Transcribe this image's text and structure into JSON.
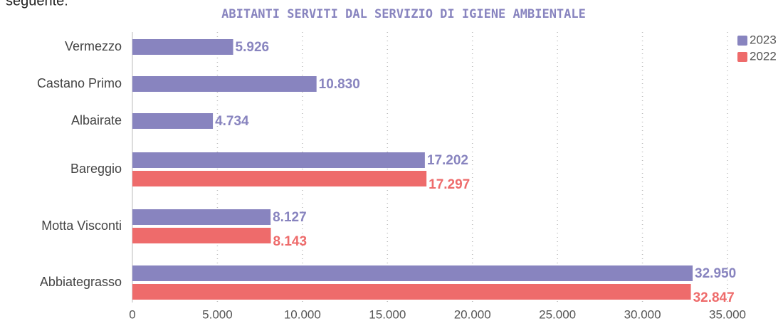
{
  "intro_text": "seguente:",
  "chart_data": {
    "type": "hbar",
    "title": "ABITANTI SERVITI DAL SERVIZIO DI IGIENE AMBIENTALE",
    "categories": [
      "Vermezzo",
      "Castano Primo",
      "Albairate",
      "Bareggio",
      "Motta Visconti",
      "Abbiategrasso"
    ],
    "series": [
      {
        "name": "2023",
        "color": "#8884bf",
        "values": [
          5926,
          10830,
          4734,
          17202,
          8127,
          32950
        ],
        "value_labels": [
          "5.926",
          "10.830",
          "4.734",
          "17.202",
          "8.127",
          "32.950"
        ]
      },
      {
        "name": "2022",
        "color": "#ee6b6b",
        "values": [
          null,
          null,
          null,
          17297,
          8143,
          32847
        ],
        "value_labels": [
          null,
          null,
          null,
          "17.297",
          "8.143",
          "32.847"
        ]
      }
    ],
    "xlim": [
      0,
      35000
    ],
    "xticks": [
      0,
      {
        "value": 5000,
        "label": "5.000"
      },
      {
        "value": 10000,
        "label": "10.000"
      },
      {
        "value": 15000,
        "label": "15.000"
      },
      {
        "value": 20000,
        "label": "20.000"
      },
      {
        "value": 25000,
        "label": "25.000"
      },
      {
        "value": 30000,
        "label": "30.000"
      },
      {
        "value": 35000,
        "label": "35.000"
      }
    ],
    "grid": true,
    "legend": "top-right"
  }
}
